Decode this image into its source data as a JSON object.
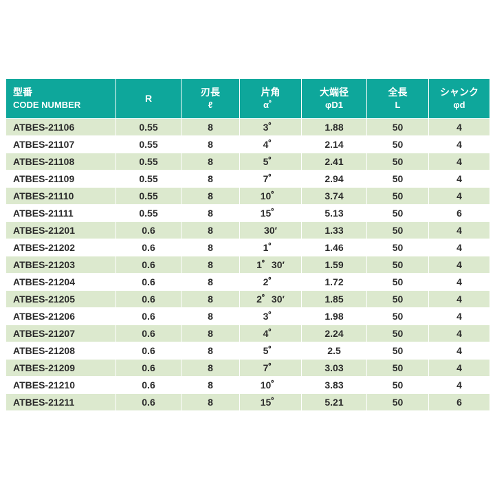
{
  "colors": {
    "header_bg": "#0ea79b",
    "row_alt_bg": "#dce9ce",
    "row_bg": "#ffffff",
    "text": "#2b2b2b",
    "header_text": "#ffffff"
  },
  "table": {
    "headers": [
      {
        "line1": "型番",
        "line2": "CODE NUMBER"
      },
      {
        "line1": "R",
        "line2": ""
      },
      {
        "line1": "刃長",
        "line2": "ℓ"
      },
      {
        "line1": "片角",
        "line2": "α゜"
      },
      {
        "line1": "大端径",
        "line2": "φD1"
      },
      {
        "line1": "全長",
        "line2": "L"
      },
      {
        "line1": "シャンク",
        "line2": "φd"
      }
    ],
    "rows": [
      [
        "ATBES-21106",
        "0.55",
        "8",
        "3゜",
        "1.88",
        "50",
        "4"
      ],
      [
        "ATBES-21107",
        "0.55",
        "8",
        "4゜",
        "2.14",
        "50",
        "4"
      ],
      [
        "ATBES-21108",
        "0.55",
        "8",
        "5゜",
        "2.41",
        "50",
        "4"
      ],
      [
        "ATBES-21109",
        "0.55",
        "8",
        "7゜",
        "2.94",
        "50",
        "4"
      ],
      [
        "ATBES-21110",
        "0.55",
        "8",
        "10゜",
        "3.74",
        "50",
        "4"
      ],
      [
        "ATBES-21111",
        "0.55",
        "8",
        "15゜",
        "5.13",
        "50",
        "6"
      ],
      [
        "ATBES-21201",
        "0.6",
        "8",
        "30′",
        "1.33",
        "50",
        "4"
      ],
      [
        "ATBES-21202",
        "0.6",
        "8",
        "1゜",
        "1.46",
        "50",
        "4"
      ],
      [
        "ATBES-21203",
        "0.6",
        "8",
        "1゜30′",
        "1.59",
        "50",
        "4"
      ],
      [
        "ATBES-21204",
        "0.6",
        "8",
        "2゜",
        "1.72",
        "50",
        "4"
      ],
      [
        "ATBES-21205",
        "0.6",
        "8",
        "2゜30′",
        "1.85",
        "50",
        "4"
      ],
      [
        "ATBES-21206",
        "0.6",
        "8",
        "3゜",
        "1.98",
        "50",
        "4"
      ],
      [
        "ATBES-21207",
        "0.6",
        "8",
        "4゜",
        "2.24",
        "50",
        "4"
      ],
      [
        "ATBES-21208",
        "0.6",
        "8",
        "5゜",
        "2.5",
        "50",
        "4"
      ],
      [
        "ATBES-21209",
        "0.6",
        "8",
        "7゜",
        "3.03",
        "50",
        "4"
      ],
      [
        "ATBES-21210",
        "0.6",
        "8",
        "10゜",
        "3.83",
        "50",
        "4"
      ],
      [
        "ATBES-21211",
        "0.6",
        "8",
        "15゜",
        "5.21",
        "50",
        "6"
      ]
    ]
  }
}
